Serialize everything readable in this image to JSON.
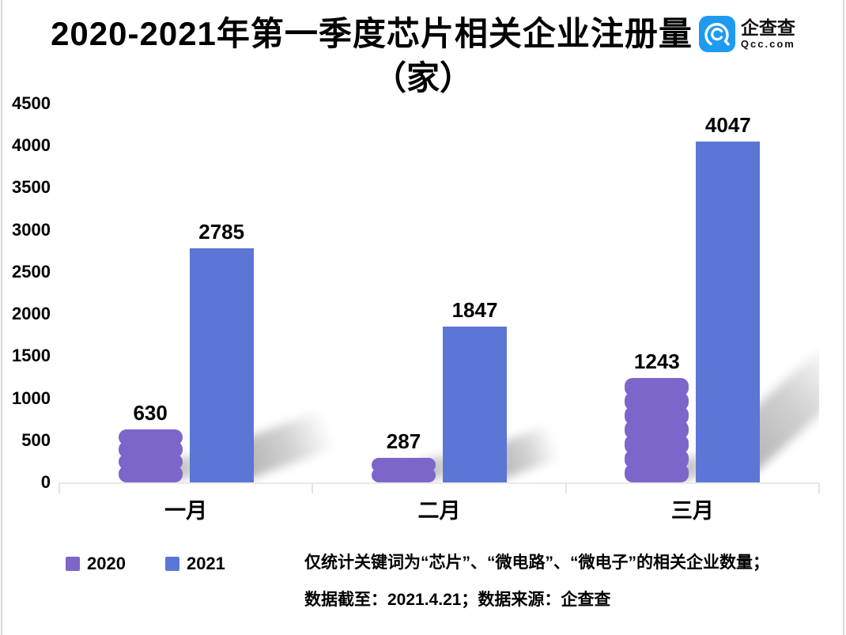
{
  "title": {
    "line1": "2020-2021年第一季度芯片相关企业注册量",
    "line2": "（家）"
  },
  "logo": {
    "name": "企查查",
    "domain": "Qcc.com",
    "brand_color": "#1e9bf0"
  },
  "chart_data": {
    "type": "bar",
    "title": "2020-2021年第一季度芯片相关企业注册量（家）",
    "categories": [
      "一月",
      "二月",
      "三月"
    ],
    "series": [
      {
        "name": "2020",
        "color": "#7d66c9",
        "values": [
          630,
          287,
          1243
        ]
      },
      {
        "name": "2021",
        "color": "#5b76d5",
        "values": [
          2785,
          1847,
          4047
        ]
      }
    ],
    "xlabel": "",
    "ylabel": "",
    "ylim": [
      0,
      4500
    ],
    "ytick_step": 500,
    "grid": false,
    "legend_position": "bottom-left",
    "bar_value_labels": true
  },
  "footnote": {
    "line1": "仅统计关键词为“芯片”、“微电路”、“微电子”的相关企业数量；",
    "line2": "数据截至：2021.4.21；数据来源：企查查"
  }
}
